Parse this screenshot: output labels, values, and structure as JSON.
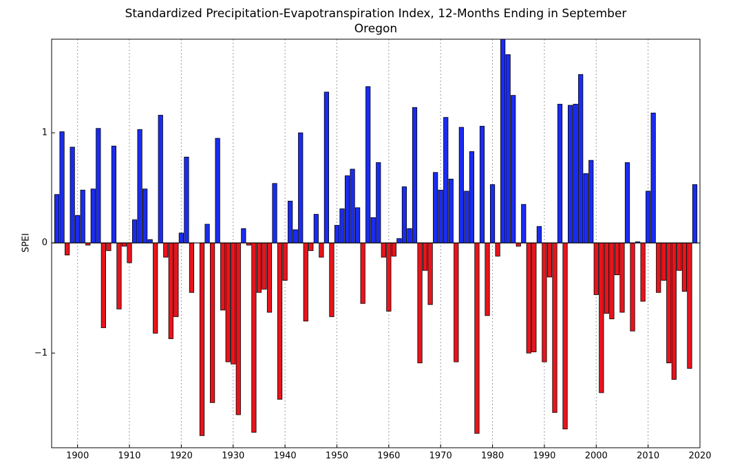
{
  "chart_data": {
    "type": "bar",
    "title": "Standardized Precipitation-Evapotranspiration Index, 12-Months Ending in September",
    "subtitle": "Oregon",
    "ylabel": "SPEI",
    "x": [
      1896,
      1897,
      1898,
      1899,
      1900,
      1901,
      1902,
      1903,
      1904,
      1905,
      1906,
      1907,
      1908,
      1909,
      1910,
      1911,
      1912,
      1913,
      1914,
      1915,
      1916,
      1917,
      1918,
      1919,
      1920,
      1921,
      1922,
      1923,
      1924,
      1925,
      1926,
      1927,
      1928,
      1929,
      1930,
      1931,
      1932,
      1933,
      1934,
      1935,
      1936,
      1937,
      1938,
      1939,
      1940,
      1941,
      1942,
      1943,
      1944,
      1945,
      1946,
      1947,
      1948,
      1949,
      1950,
      1951,
      1952,
      1953,
      1954,
      1955,
      1956,
      1957,
      1958,
      1959,
      1960,
      1961,
      1962,
      1963,
      1964,
      1965,
      1966,
      1967,
      1968,
      1969,
      1970,
      1971,
      1972,
      1973,
      1974,
      1975,
      1976,
      1977,
      1978,
      1979,
      1980,
      1981,
      1982,
      1983,
      1984,
      1985,
      1986,
      1987,
      1988,
      1989,
      1990,
      1991,
      1992,
      1993,
      1994,
      1995,
      1996,
      1997,
      1998,
      1999,
      2000,
      2001,
      2002,
      2003,
      2004,
      2005,
      2006,
      2007,
      2008,
      2009,
      2010,
      2011,
      2012,
      2013,
      2014,
      2015,
      2016,
      2017,
      2018,
      2019
    ],
    "values": [
      0.44,
      1.01,
      -0.11,
      0.87,
      0.25,
      0.48,
      -0.02,
      0.49,
      1.04,
      -0.77,
      -0.07,
      0.88,
      -0.6,
      -0.03,
      -0.18,
      0.21,
      1.03,
      0.49,
      0.03,
      -0.82,
      1.16,
      -0.13,
      -0.87,
      -0.67,
      0.09,
      0.78,
      -0.45,
      0,
      -1.75,
      0.17,
      -1.45,
      0.95,
      -0.61,
      -1.08,
      -1.1,
      -1.56,
      0.13,
      -0.02,
      -1.72,
      -0.45,
      -0.42,
      -0.63,
      0.54,
      -1.42,
      -0.34,
      0.38,
      0.12,
      1.0,
      -0.71,
      -0.07,
      0.26,
      -0.13,
      1.37,
      -0.67,
      0.16,
      0.31,
      0.61,
      0.67,
      0.32,
      -0.55,
      1.42,
      0.23,
      0.73,
      -0.13,
      -0.62,
      -0.12,
      0.04,
      0.51,
      0.13,
      1.23,
      -1.09,
      -0.25,
      -0.56,
      0.64,
      0.48,
      1.14,
      0.58,
      -1.08,
      1.05,
      0.47,
      0.83,
      -1.73,
      1.06,
      -0.66,
      0.53,
      -0.12,
      1.85,
      1.71,
      1.34,
      -0.03,
      0.35,
      -1.0,
      -0.99,
      0.15,
      -1.08,
      -0.31,
      -1.54,
      1.26,
      -1.69,
      1.25,
      1.26,
      1.53,
      0.63,
      0.75,
      -0.47,
      -1.36,
      -0.64,
      -0.69,
      -0.29,
      -0.63,
      0.73,
      -0.8,
      0.01,
      -0.53,
      0.47,
      1.18,
      -0.45,
      -0.34,
      -1.09,
      -1.24,
      -0.25,
      -0.44,
      -1.14,
      0.53
    ],
    "positive_color": "#1a2cf0",
    "negative_color": "#e8141c",
    "xlim": [
      1895,
      2020
    ],
    "xticks": [
      1900,
      1910,
      1920,
      1930,
      1940,
      1950,
      1960,
      1970,
      1980,
      1990,
      2000,
      2010,
      2020
    ],
    "ylim": [
      -1.86,
      1.85
    ],
    "yticks": [
      {
        "value": -1,
        "label": "−1"
      },
      0,
      1
    ],
    "grid": "x"
  }
}
